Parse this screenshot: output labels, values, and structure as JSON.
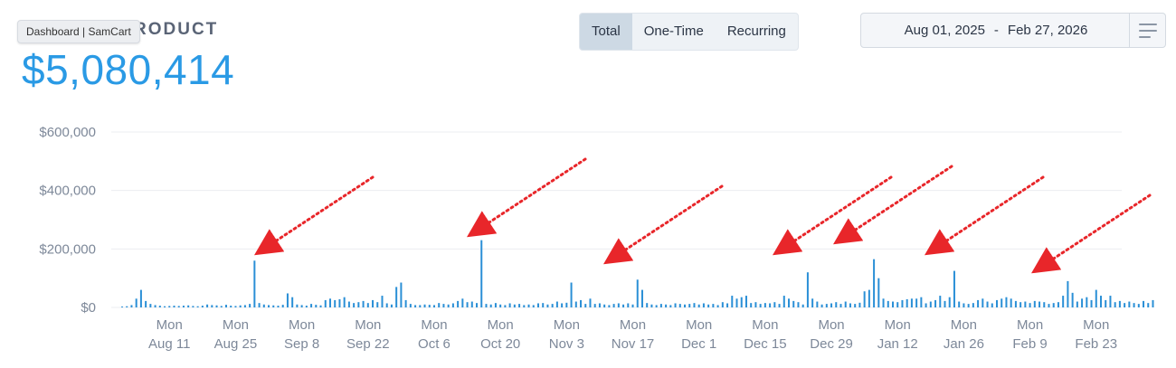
{
  "header": {
    "title": "RODUCT",
    "tooltip": "Dashboard | SamCart",
    "total": "$5,080,414"
  },
  "tabs": [
    {
      "label": "Total",
      "active": true
    },
    {
      "label": "One-Time",
      "active": false
    },
    {
      "label": "Recurring",
      "active": false
    }
  ],
  "date_range": {
    "start": "Aug 01, 2025",
    "separator": "-",
    "end": "Feb 27, 2026"
  },
  "menu_icon": "hamburger-menu-icon",
  "colors": {
    "bar": "#2a8fd6",
    "accent": "#2a9ae5",
    "arrow": "#e8262a",
    "grid": "#ebedf0",
    "axis_text": "#7d8899"
  },
  "chart_data": {
    "type": "bar",
    "ylim": [
      0,
      600000
    ],
    "yticks": [
      0,
      200000,
      400000,
      600000
    ],
    "ytick_labels": [
      "$0",
      "$200,000",
      "$400,000",
      "$600,000"
    ],
    "xrange": [
      "2025-08-01",
      "2026-02-27"
    ],
    "xticks": [
      {
        "date": "2025-08-11",
        "day": "Mon",
        "label": "Aug 11"
      },
      {
        "date": "2025-08-25",
        "day": "Mon",
        "label": "Aug 25"
      },
      {
        "date": "2025-09-08",
        "day": "Mon",
        "label": "Sep 8"
      },
      {
        "date": "2025-09-22",
        "day": "Mon",
        "label": "Sep 22"
      },
      {
        "date": "2025-10-06",
        "day": "Mon",
        "label": "Oct 6"
      },
      {
        "date": "2025-10-20",
        "day": "Mon",
        "label": "Oct 20"
      },
      {
        "date": "2025-11-03",
        "day": "Mon",
        "label": "Nov 3"
      },
      {
        "date": "2025-11-17",
        "day": "Mon",
        "label": "Nov 17"
      },
      {
        "date": "2025-12-01",
        "day": "Mon",
        "label": "Dec 1"
      },
      {
        "date": "2025-12-15",
        "day": "Mon",
        "label": "Dec 15"
      },
      {
        "date": "2025-12-29",
        "day": "Mon",
        "label": "Dec 29"
      },
      {
        "date": "2026-01-12",
        "day": "Mon",
        "label": "Jan 12"
      },
      {
        "date": "2026-01-26",
        "day": "Mon",
        "label": "Jan 26"
      },
      {
        "date": "2026-02-09",
        "day": "Mon",
        "label": "Feb 9"
      },
      {
        "date": "2026-02-23",
        "day": "Mon",
        "label": "Feb 23"
      }
    ],
    "grid": true,
    "legend": "none",
    "values": [
      3000,
      4000,
      8000,
      30000,
      60000,
      22000,
      12000,
      8000,
      6000,
      4000,
      5000,
      6000,
      5000,
      6000,
      7000,
      5000,
      4000,
      6000,
      10000,
      8000,
      7000,
      5000,
      9000,
      6000,
      5000,
      7000,
      8000,
      12000,
      160000,
      15000,
      10000,
      8000,
      7000,
      6000,
      9000,
      48000,
      35000,
      10000,
      8000,
      6000,
      12000,
      9000,
      7000,
      25000,
      30000,
      25000,
      28000,
      35000,
      20000,
      15000,
      18000,
      22000,
      15000,
      25000,
      18000,
      40000,
      14000,
      10000,
      70000,
      85000,
      25000,
      12000,
      8000,
      8000,
      10000,
      9000,
      8000,
      15000,
      12000,
      10000,
      14000,
      22000,
      30000,
      18000,
      20000,
      15000,
      230000,
      12000,
      10000,
      15000,
      10000,
      8000,
      14000,
      10000,
      12000,
      8000,
      10000,
      8000,
      14000,
      15000,
      10000,
      12000,
      20000,
      14000,
      16000,
      85000,
      20000,
      25000,
      12000,
      30000,
      12000,
      14000,
      10000,
      8000,
      12000,
      14000,
      10000,
      14000,
      10000,
      95000,
      60000,
      15000,
      10000,
      8000,
      12000,
      10000,
      8000,
      14000,
      12000,
      10000,
      12000,
      15000,
      10000,
      14000,
      10000,
      12000,
      8000,
      18000,
      14000,
      40000,
      30000,
      35000,
      40000,
      15000,
      18000,
      12000,
      15000,
      14000,
      18000,
      12000,
      40000,
      30000,
      22000,
      18000,
      10000,
      120000,
      30000,
      20000,
      10000,
      12000,
      14000,
      18000,
      12000,
      20000,
      14000,
      12000,
      16000,
      55000,
      60000,
      165000,
      100000,
      30000,
      22000,
      20000,
      18000,
      25000,
      28000,
      30000,
      30000,
      35000,
      14000,
      20000,
      25000,
      40000,
      22000,
      35000,
      125000,
      20000,
      14000,
      12000,
      15000,
      25000,
      30000,
      20000,
      14000,
      25000,
      30000,
      35000,
      30000,
      22000,
      18000,
      20000,
      15000,
      22000,
      20000,
      18000,
      12000,
      15000,
      18000,
      40000,
      90000,
      50000,
      20000,
      30000,
      35000,
      25000,
      60000,
      40000,
      25000,
      40000,
      18000,
      22000,
      15000,
      20000,
      15000,
      12000,
      22000,
      15000,
      25000
    ]
  },
  "annotations": {
    "type": "arrows",
    "points_to": [
      "2025-08-29",
      "2025-10-13",
      "2025-11-09",
      "2025-12-18",
      "2026-01-01",
      "2026-01-15",
      "2026-02-08"
    ]
  }
}
